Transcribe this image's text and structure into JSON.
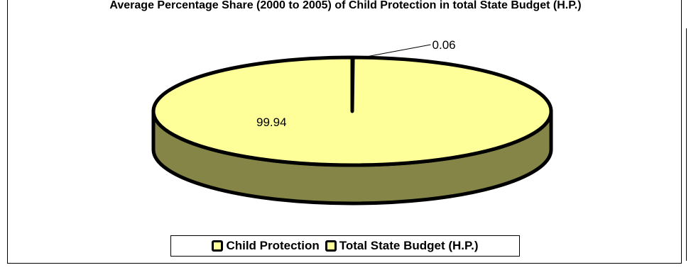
{
  "chart_data": {
    "type": "pie",
    "style": "3d",
    "title": "Average Percentage Share (2000 to 2005) of Child Protection in total State Budget (H.P.)",
    "categories": [
      "Child Protection",
      "Total State Budget (H.P.)"
    ],
    "values": [
      0.06,
      99.94
    ],
    "data_labels": [
      "0.06",
      "99.94"
    ],
    "colors": [
      "#ffff99",
      "#ffff99"
    ],
    "side_color": "#858547",
    "legend_position": "bottom"
  }
}
